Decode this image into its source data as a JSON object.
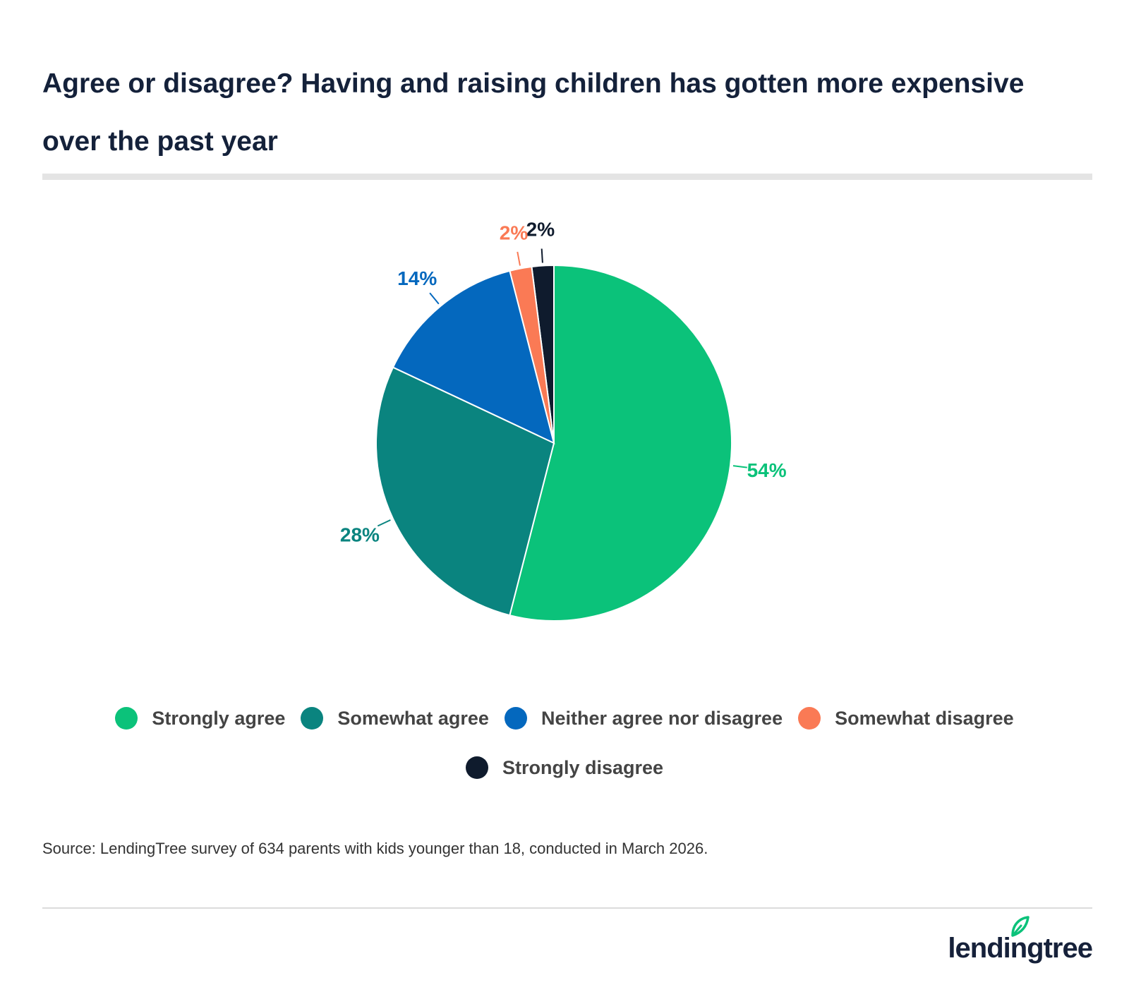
{
  "chart_data": {
    "type": "pie",
    "title": "Agree or disagree? Having and raising children has gotten more expensive over the past year",
    "slices": [
      {
        "label": "Strongly agree",
        "value": 54,
        "display": "54%",
        "color": "#0bc27a"
      },
      {
        "label": "Somewhat agree",
        "value": 28,
        "display": "28%",
        "color": "#0a847f"
      },
      {
        "label": "Neither agree nor disagree",
        "value": 14,
        "display": "14%",
        "color": "#0468be"
      },
      {
        "label": "Somewhat disagree",
        "value": 2,
        "display": "2%",
        "color": "#fa7a55"
      },
      {
        "label": "Strongly disagree",
        "value": 2,
        "display": "2%",
        "color": "#0f1b2d"
      }
    ],
    "legend_position": "bottom",
    "source": "Source: LendingTree survey of 634 parents with kids younger than 18, conducted in March 2026."
  },
  "brand": {
    "logo_text": "lendingtree",
    "logo_icon": "leaf-icon",
    "logo_color": "#16213a",
    "accent_color": "#0bc27a"
  }
}
